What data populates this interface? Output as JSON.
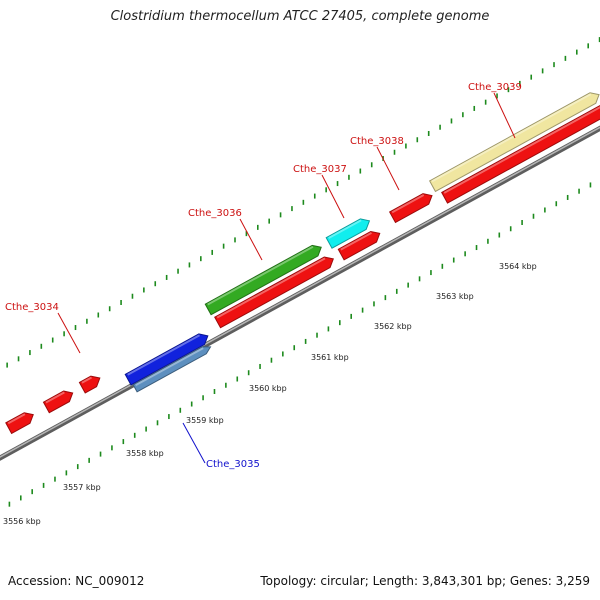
{
  "header": {
    "title": "Clostridium thermocellum ATCC 27405, complete genome"
  },
  "footer": {
    "accession": "Accession: NC_009012",
    "summary": "Topology: circular; Length: 3,843,301 bp; Genes: 3,259"
  },
  "colors": {
    "backbone": "#7a7a7a",
    "tick_outer": "#1d8a1d",
    "tick_inner": "#1d8a1d",
    "gene_red": "#ee1111",
    "gene_green": "#33aa22",
    "gene_cyan": "#11eeee",
    "gene_yellow": "#f0e6a0",
    "gene_blue": "#1122dd",
    "gene_steel": "#5d8fbf",
    "label_red": "#cc1111",
    "label_blue": "#1111cc"
  },
  "scale_labels": [
    "3556 kbp",
    "3557 kbp",
    "3558 kbp",
    "3559 kbp",
    "3560 kbp",
    "3561 kbp",
    "3562 kbp",
    "3563 kbp",
    "3564 kbp"
  ],
  "gene_labels": [
    {
      "id": "cthe-3034",
      "text": "Cthe_3034",
      "color": "red"
    },
    {
      "id": "cthe-3035",
      "text": "Cthe_3035",
      "color": "blue"
    },
    {
      "id": "cthe-3036",
      "text": "Cthe_3036",
      "color": "red"
    },
    {
      "id": "cthe-3037",
      "text": "Cthe_3037",
      "color": "red"
    },
    {
      "id": "cthe-3038",
      "text": "Cthe_3038",
      "color": "red"
    },
    {
      "id": "cthe-3039",
      "text": "Cthe_3039",
      "color": "red"
    }
  ]
}
